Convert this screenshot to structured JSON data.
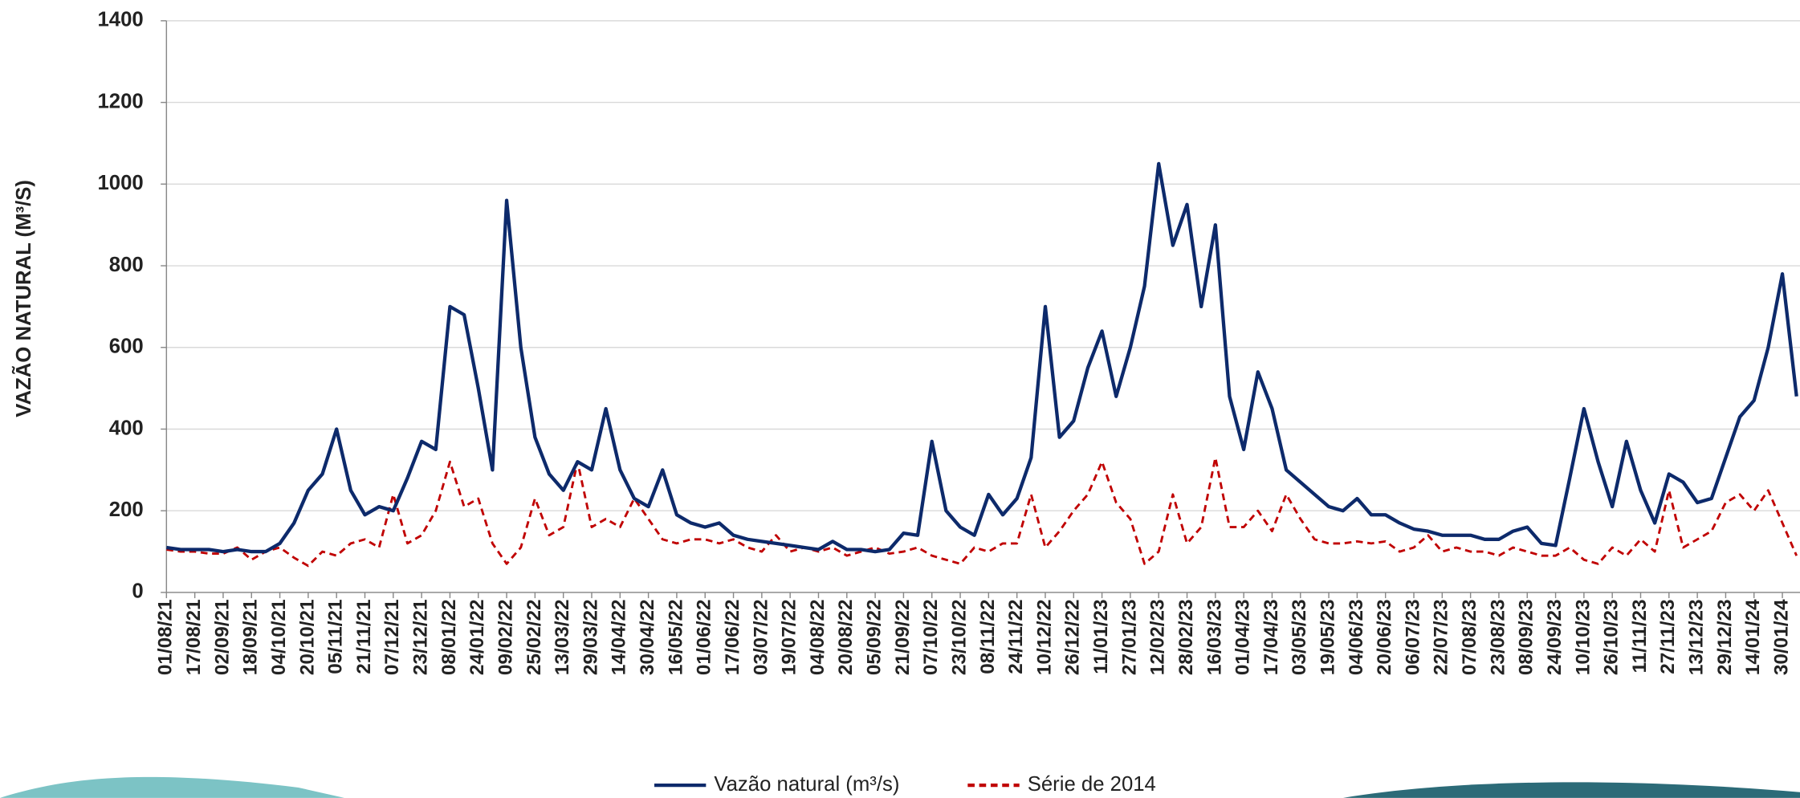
{
  "chart_data": {
    "type": "line",
    "y_label": "VAZÃO NATURAL  (M³/S)",
    "categories": [
      "01/08/21",
      null,
      "17/08/21",
      null,
      "02/09/21",
      null,
      "18/09/21",
      null,
      "04/10/21",
      null,
      "20/10/21",
      null,
      "05/11/21",
      null,
      "21/11/21",
      null,
      "07/12/21",
      null,
      "23/12/21",
      null,
      "08/01/22",
      null,
      "24/01/22",
      null,
      "09/02/22",
      null,
      "25/02/22",
      null,
      "13/03/22",
      null,
      "29/03/22",
      null,
      "14/04/22",
      null,
      "30/04/22",
      null,
      "16/05/22",
      null,
      "01/06/22",
      null,
      "17/06/22",
      null,
      "03/07/22",
      null,
      "19/07/22",
      null,
      "04/08/22",
      null,
      "20/08/22",
      null,
      "05/09/22",
      null,
      "21/09/22",
      null,
      "07/10/22",
      null,
      "23/10/22",
      null,
      "08/11/22",
      null,
      "24/11/22",
      null,
      "10/12/22",
      null,
      "26/12/22",
      null,
      "11/01/23",
      null,
      "27/01/23",
      null,
      "12/02/23",
      null,
      "28/02/23",
      null,
      "16/03/23",
      null,
      "01/04/23",
      null,
      "17/04/23",
      null,
      "03/05/23",
      null,
      "19/05/23",
      null,
      "04/06/23",
      null,
      "20/06/23",
      null,
      "06/07/23",
      null,
      "22/07/23",
      null,
      "07/08/23",
      null,
      "23/08/23",
      null,
      "08/09/23",
      null,
      "24/09/23",
      null,
      "10/10/23",
      null,
      "26/10/23",
      null,
      "11/11/23",
      null,
      "27/11/23",
      null,
      "13/12/23",
      null,
      "29/12/23",
      null,
      "14/01/24",
      null,
      "30/01/24",
      null
    ],
    "series": [
      {
        "name": "Vazão natural (m³/s)",
        "color": "#0d2a6b",
        "dash": false,
        "values": [
          110,
          105,
          105,
          105,
          100,
          105,
          100,
          100,
          120,
          170,
          250,
          290,
          400,
          250,
          190,
          210,
          200,
          280,
          370,
          350,
          700,
          680,
          500,
          300,
          960,
          600,
          380,
          290,
          250,
          320,
          300,
          450,
          300,
          230,
          210,
          300,
          190,
          170,
          160,
          170,
          140,
          130,
          125,
          120,
          115,
          110,
          105,
          125,
          105,
          105,
          100,
          105,
          145,
          140,
          370,
          200,
          160,
          140,
          240,
          190,
          230,
          330,
          700,
          380,
          420,
          550,
          640,
          480,
          600,
          750,
          1050,
          850,
          950,
          700,
          900,
          480,
          350,
          540,
          450,
          300,
          270,
          240,
          210,
          200,
          230,
          190,
          190,
          170,
          155,
          150,
          140,
          140,
          140,
          130,
          130,
          150,
          160,
          120,
          115,
          280,
          450,
          320,
          210,
          370,
          250,
          170,
          290,
          270,
          220,
          230,
          330,
          430,
          470,
          600,
          780,
          480
        ]
      },
      {
        "name": "Série de 2014",
        "color": "#c00000",
        "dash": true,
        "values": [
          105,
          100,
          100,
          95,
          95,
          110,
          80,
          100,
          110,
          85,
          65,
          100,
          90,
          120,
          130,
          110,
          240,
          120,
          140,
          200,
          320,
          210,
          230,
          120,
          70,
          110,
          230,
          140,
          160,
          320,
          160,
          180,
          160,
          230,
          180,
          130,
          120,
          130,
          130,
          120,
          130,
          110,
          100,
          140,
          100,
          110,
          100,
          110,
          90,
          100,
          110,
          95,
          100,
          110,
          90,
          80,
          70,
          110,
          100,
          120,
          120,
          240,
          110,
          150,
          200,
          240,
          320,
          220,
          180,
          70,
          100,
          240,
          120,
          160,
          330,
          160,
          160,
          200,
          150,
          240,
          180,
          130,
          120,
          120,
          125,
          120,
          125,
          100,
          110,
          140,
          100,
          110,
          100,
          100,
          90,
          110,
          100,
          90,
          90,
          110,
          80,
          70,
          110,
          90,
          130,
          100,
          250,
          110,
          130,
          150,
          220,
          240,
          200,
          250,
          170,
          90
        ]
      }
    ],
    "ylim": [
      0,
      1400
    ],
    "yticks": [
      0,
      200,
      400,
      600,
      800,
      1000,
      1200,
      1400
    ],
    "grid": true
  }
}
